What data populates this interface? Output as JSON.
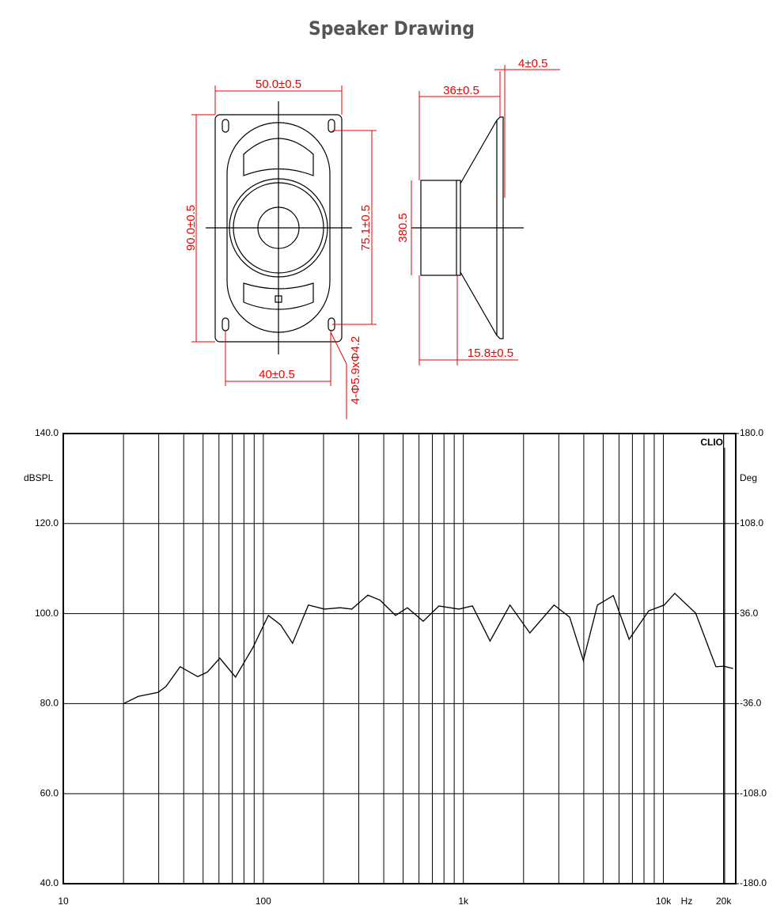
{
  "title": "Speaker Drawing",
  "drawing": {
    "labels": [
      "50.0±0.5",
      "90.0±0.5",
      "75.1±0.5",
      "40±0.5",
      "4-Φ5.9xΦ4.2",
      "4±0.5",
      "36±0.5",
      "380.5",
      "15.8±0.5"
    ]
  },
  "chart_data": {
    "type": "line",
    "color": "#000000",
    "log_x": true,
    "grid": true,
    "minor_grid": true,
    "ylabel": "dBSPL",
    "y2label": "Deg",
    "annotations": [
      "CLIO",
      "Hz"
    ],
    "x": [
      20,
      23.7,
      29.8,
      32.6,
      38.4,
      47,
      52.5,
      60.6,
      72.6,
      88.8,
      106,
      122,
      140,
      168,
      202,
      242,
      277,
      333,
      383,
      458,
      525,
      630,
      755,
      950,
      1110,
      1360,
      1710,
      2150,
      2840,
      3400,
      3980,
      4680,
      5620,
      6740,
      8450,
      10100,
      11400,
      14500,
      18300,
      20000,
      22300
    ],
    "values": [
      80.0,
      81.6,
      82.5,
      83.8,
      88.2,
      86.0,
      87.0,
      90.1,
      85.9,
      92.5,
      99.6,
      97.5,
      93.4,
      101.9,
      101.0,
      101.3,
      101.0,
      104.1,
      103.0,
      99.6,
      101.3,
      98.3,
      101.7,
      101.0,
      101.7,
      93.9,
      101.9,
      95.7,
      101.9,
      99.2,
      89.6,
      101.9,
      104.0,
      94.3,
      100.6,
      101.9,
      104.5,
      100.1,
      88.2,
      88.3,
      87.8
    ],
    "xlim": [
      10,
      23000
    ],
    "xticks": [
      10,
      100,
      {
        "value": 1000,
        "label": "1k"
      },
      {
        "value": 10000,
        "label": "10k"
      },
      {
        "value": 20000,
        "label": "20k"
      }
    ],
    "ylim": [
      40,
      140
    ],
    "yticks": [
      {
        "value": 40,
        "label": "40.0"
      },
      {
        "value": 60,
        "label": "60.0"
      },
      {
        "value": 80,
        "label": "80.0"
      },
      {
        "value": 100,
        "label": "100.0"
      },
      {
        "value": 120,
        "label": "120.0"
      },
      {
        "value": 140,
        "label": "140.0"
      }
    ],
    "y2lim": [
      -180,
      180
    ],
    "y2ticks": [
      {
        "value": -180,
        "label": "-180.0"
      },
      {
        "value": -108,
        "label": "-108.0"
      },
      {
        "value": -36,
        "label": "-36.0"
      },
      {
        "value": 36,
        "label": "36.0"
      },
      {
        "value": 108,
        "label": "108.0"
      },
      {
        "value": 180,
        "label": "180.0"
      }
    ]
  }
}
